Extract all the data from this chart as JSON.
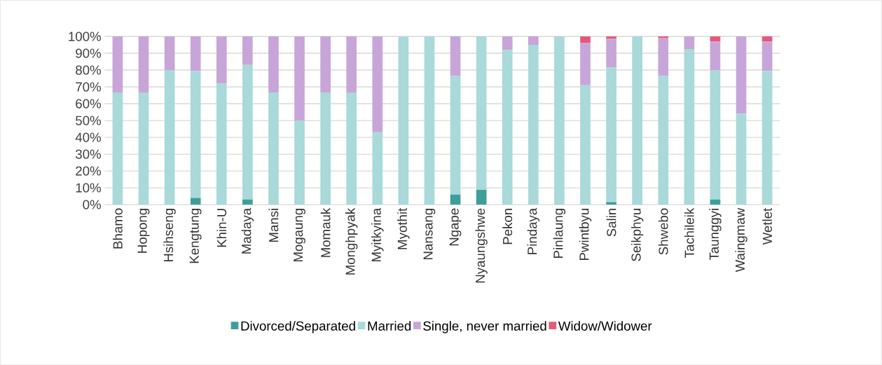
{
  "chart_data": {
    "type": "bar",
    "stacked": true,
    "categories": [
      "Bhamo",
      "Hopong",
      "Hsihseng",
      "Kengtung",
      "Khin-U",
      "Madaya",
      "Mansi",
      "Mogaung",
      "Momauk",
      "Monghpyak",
      "Myitkyina",
      "Myothit",
      "Nansang",
      "Ngape",
      "Nyaungshwe",
      "Pekon",
      "Pindaya",
      "Pinlaung",
      "Pwintbyu",
      "Salin",
      "Seikphyu",
      "Shwebo",
      "Tachileik",
      "Taunggyi",
      "Waingmaw",
      "Wetlet"
    ],
    "series": [
      {
        "name": "Divorced/Separated",
        "color": "#3d9e9a",
        "values": [
          0,
          0,
          0,
          4,
          0,
          3,
          0,
          0,
          0,
          0,
          0,
          0,
          0,
          6,
          9,
          0,
          0,
          0,
          0,
          1.5,
          0,
          0,
          0,
          3,
          0,
          0
        ]
      },
      {
        "name": "Married",
        "color": "#a9d9d9",
        "values": [
          66.7,
          66.7,
          80,
          75.5,
          72,
          80,
          66.7,
          50,
          66.7,
          66.7,
          43,
          100,
          100,
          70.5,
          91,
          92,
          95,
          100,
          71,
          80,
          100,
          76.5,
          92.5,
          77,
          54,
          79.5
        ]
      },
      {
        "name": "Single, never married",
        "color": "#c8a5d8",
        "values": [
          33.3,
          33.3,
          20,
          20.5,
          28,
          17,
          33.3,
          50,
          33.3,
          33.3,
          57,
          0,
          0,
          23.5,
          0,
          8,
          5,
          0,
          25,
          17,
          0,
          22.5,
          7.5,
          17,
          46,
          17.5
        ]
      },
      {
        "name": "Widow/Widower",
        "color": "#e5587a",
        "values": [
          0,
          0,
          0,
          0,
          0,
          0,
          0,
          0,
          0,
          0,
          0,
          0,
          0,
          0,
          0,
          0,
          0,
          0,
          4,
          1.5,
          0,
          1,
          0,
          3,
          0,
          3
        ]
      }
    ],
    "ylim": [
      0,
      100
    ],
    "yticks": [
      {
        "value": 0,
        "label": "0%"
      },
      {
        "value": 10,
        "label": "10%"
      },
      {
        "value": 20,
        "label": "20%"
      },
      {
        "value": 30,
        "label": "30%"
      },
      {
        "value": 40,
        "label": "40%"
      },
      {
        "value": 50,
        "label": "50%"
      },
      {
        "value": 60,
        "label": "60%"
      },
      {
        "value": 70,
        "label": "70%"
      },
      {
        "value": 80,
        "label": "80%"
      },
      {
        "value": 90,
        "label": "90%"
      },
      {
        "value": 100,
        "label": "100%"
      }
    ],
    "grid": "y",
    "legend": "bottom"
  }
}
